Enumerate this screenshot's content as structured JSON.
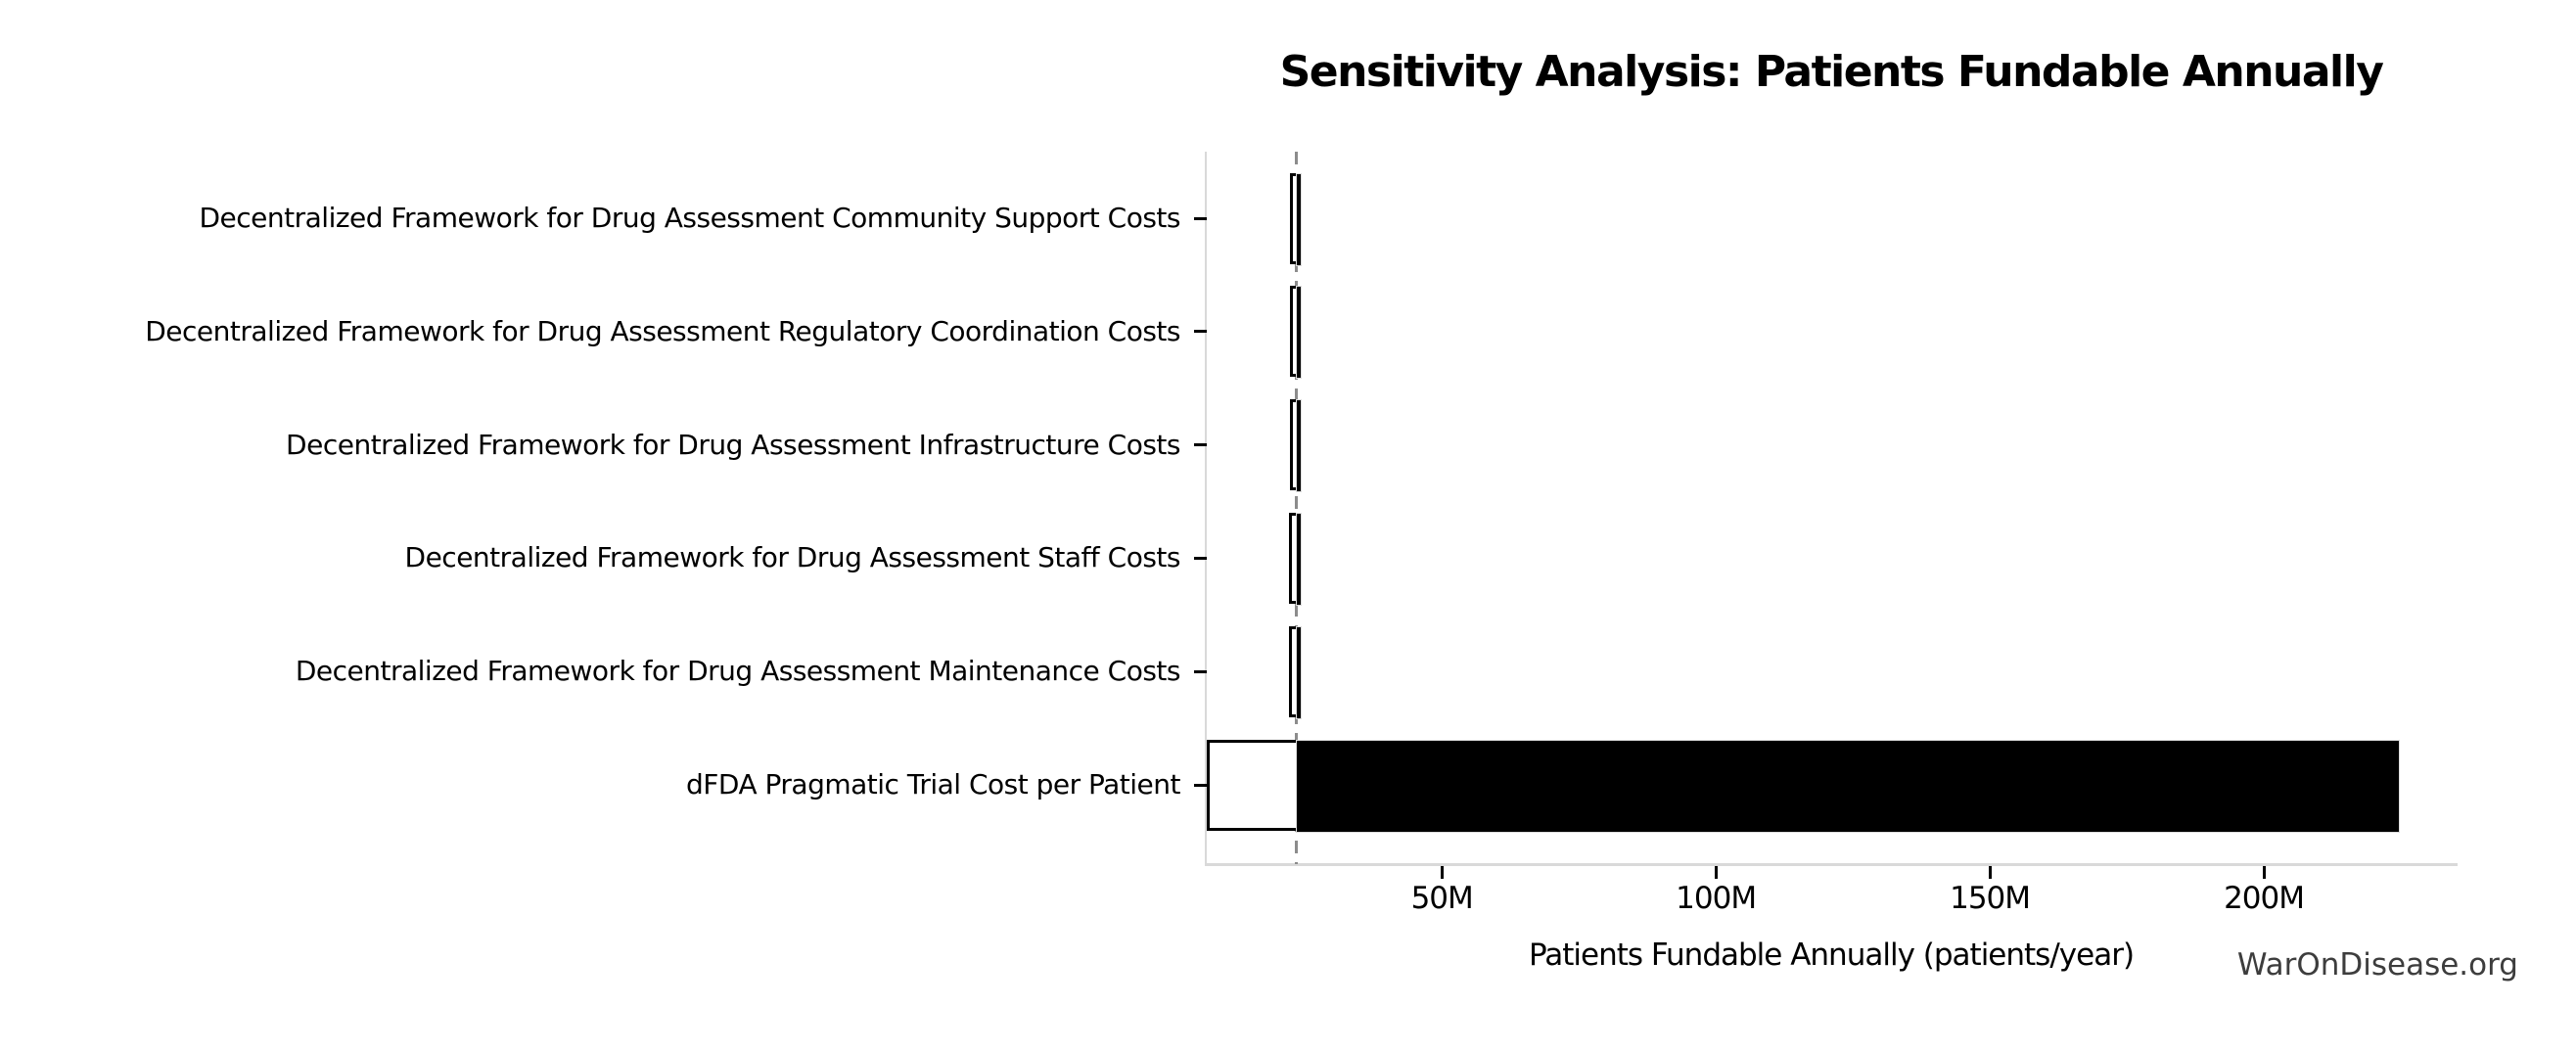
{
  "figure": {
    "title": "Sensitivity Analysis: Patients Fundable Annually",
    "watermark": "WarOnDisease.org"
  },
  "chart_data": {
    "type": "bar",
    "orientation": "horizontal",
    "variant": "tornado-sensitivity",
    "title": "Sensitivity Analysis: Patients Fundable Annually",
    "xlabel": "Patients Fundable Annually (patients/year)",
    "ylabel": "",
    "unit": "patients/year",
    "grid": false,
    "legend": null,
    "baseline_value_m": 23.4,
    "xlim_m": [
      7.1,
      235.0
    ],
    "x_ticks": [
      {
        "value_m": 50,
        "label": "50M"
      },
      {
        "value_m": 100,
        "label": "100M"
      },
      {
        "value_m": 150,
        "label": "150M"
      },
      {
        "value_m": 200,
        "label": "200M"
      }
    ],
    "rows": [
      {
        "label": "Decentralized Framework for Drug Assessment Community Support Costs",
        "low_m": 22.8,
        "high_m": 24.0
      },
      {
        "label": "Decentralized Framework for Drug Assessment Regulatory Coordination Costs",
        "low_m": 22.8,
        "high_m": 24.0
      },
      {
        "label": "Decentralized Framework for Drug Assessment Infrastructure Costs",
        "low_m": 22.8,
        "high_m": 24.0
      },
      {
        "label": "Decentralized Framework for Drug Assessment Staff Costs",
        "low_m": 22.7,
        "high_m": 24.1
      },
      {
        "label": "Decentralized Framework for Drug Assessment Maintenance Costs",
        "low_m": 22.7,
        "high_m": 24.1
      },
      {
        "label": "dFDA Pragmatic Trial Cost per Patient",
        "low_m": 7.6,
        "high_m": 224.5
      }
    ],
    "colors": {
      "bar_low_fill": "#ffffff",
      "bar_low_edge": "#000000",
      "bar_high_fill": "#000000",
      "bar_high_edge": "#dcdcdc",
      "baseline_line": "#8c8c8c",
      "spine": "#d9d9d9",
      "tick": "#000000",
      "text": "#000000",
      "watermark_text": "#3d3d3d"
    }
  }
}
